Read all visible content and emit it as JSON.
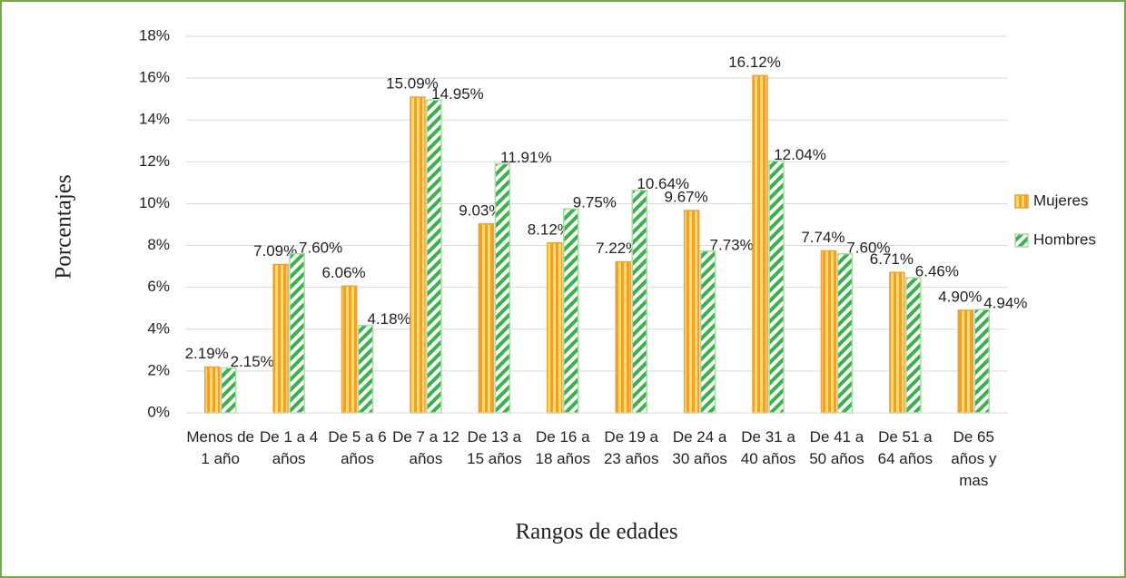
{
  "chart_data": {
    "type": "bar",
    "xlabel": "Rangos de edades",
    "ylabel": "Porcentajes",
    "categories": [
      "Menos de 1 año",
      "De 1 a 4 años",
      "De 5 a 6 años",
      "De 7 a 12 años",
      "De 13 a 15 años",
      "De 16 a 18 años",
      "De 19 a 23 años",
      "De 24 a 30 años",
      "De 31 a 40 años",
      "De 41 a 50 años",
      "De 51 a 64 años",
      "De 65 años y mas"
    ],
    "series": [
      {
        "name": "Mujeres",
        "color": "#f0a030",
        "values": [
          2.19,
          7.09,
          6.06,
          15.09,
          9.03,
          8.12,
          7.22,
          9.67,
          16.12,
          7.74,
          6.71,
          4.9
        ],
        "value_labels": [
          "2.19%",
          "7.09%",
          "6.06%",
          "15.09%",
          "9.03%",
          "8.12%",
          "7.22%",
          "9.67%",
          "16.12%",
          "7.74%",
          "6.71%",
          "4.90%"
        ]
      },
      {
        "name": "Hombres",
        "color": "#3cb04a",
        "values": [
          2.15,
          7.6,
          4.18,
          14.95,
          11.91,
          9.75,
          10.64,
          7.73,
          12.04,
          7.6,
          6.46,
          4.94
        ],
        "value_labels": [
          "2.15%",
          "7.60%",
          "4.18%",
          "14.95%",
          "11.91%",
          "9.75%",
          "10.64%",
          "7.73%",
          "12.04%",
          "7.60%",
          "6.46%",
          "4.94%"
        ]
      }
    ],
    "ylim": [
      0,
      18
    ],
    "yticks": [
      {
        "value": 0,
        "label": "0%"
      },
      {
        "value": 2,
        "label": "2%"
      },
      {
        "value": 4,
        "label": "4%"
      },
      {
        "value": 6,
        "label": "6%"
      },
      {
        "value": 8,
        "label": "8%"
      },
      {
        "value": 10,
        "label": "10%"
      },
      {
        "value": 12,
        "label": "12%"
      },
      {
        "value": 14,
        "label": "14%"
      },
      {
        "value": 16,
        "label": "16%"
      },
      {
        "value": 18,
        "label": "18%"
      }
    ],
    "grid": true,
    "legend": "right"
  }
}
